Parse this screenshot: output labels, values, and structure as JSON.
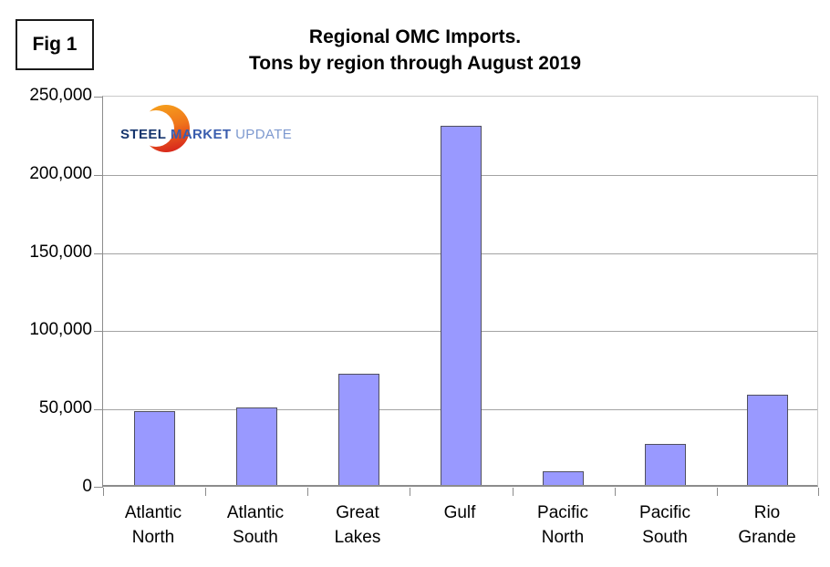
{
  "fig_label": "Fig 1",
  "logo": {
    "word1": "STEEL",
    "word2": "MARKET",
    "word3": "UPDATE",
    "crescent_gradient_top": "#F6A21D",
    "crescent_gradient_mid": "#F0761B",
    "crescent_gradient_bottom": "#D92B1C"
  },
  "chart_data": {
    "type": "bar",
    "title": "Regional OMC Imports. Tons by region through August 2019",
    "title_lines": [
      "Regional OMC Imports.",
      "Tons by region through August 2019"
    ],
    "categories": [
      "Atlantic\nNorth",
      "Atlantic\nSouth",
      "Great\nLakes",
      "Gulf",
      "Pacific\nNorth",
      "Pacific\nSouth",
      "Rio\nGrande"
    ],
    "values": [
      47000,
      49700,
      71000,
      229500,
      8800,
      26000,
      57900
    ],
    "xlabel": "",
    "ylabel": "",
    "ylim": [
      0,
      250000
    ],
    "yticks": [
      0,
      50000,
      100000,
      150000,
      200000,
      250000
    ],
    "ytick_labels": [
      "0",
      "50,000",
      "100,000",
      "150,000",
      "200,000",
      "250,000"
    ],
    "grid": "horizontal",
    "legend": "none",
    "bar_color": "#9999ff",
    "bar_border_color": "#50505f",
    "gridline_color": "#a3a3a3",
    "axis_color": "#8c8c8c",
    "outer_border_color": "#c9c9c9"
  }
}
